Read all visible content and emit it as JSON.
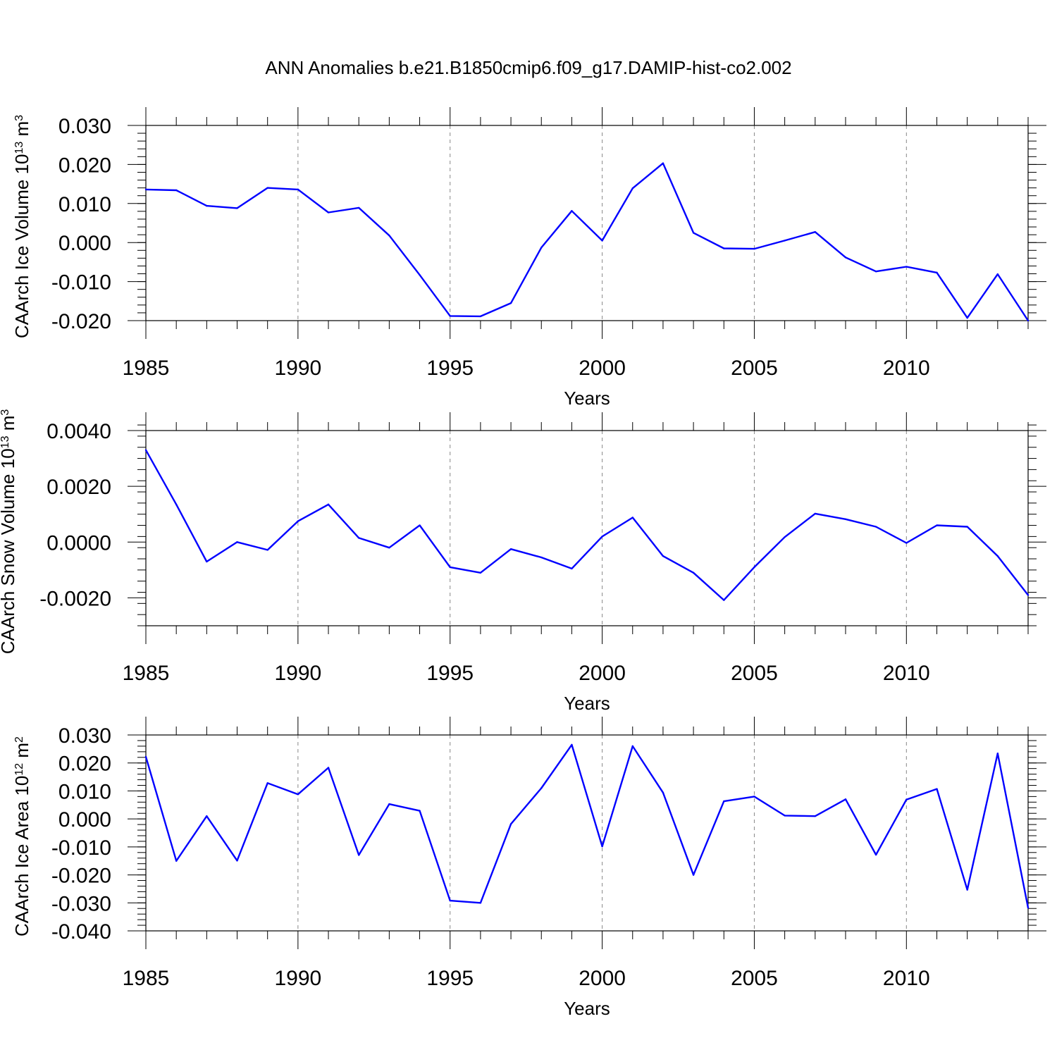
{
  "title": "ANN Anomalies b.e21.B1850cmip6.f09_g17.DAMIP-hist-co2.002",
  "colors": {
    "series": "#0000ff",
    "frame": "#000000",
    "grid": "#888888"
  },
  "chart_data": [
    {
      "type": "line",
      "name": "ice-volume",
      "ylabel_main": "CAArch Ice Volume 10",
      "ylabel_exp": "13",
      "ylabel_unit": " m",
      "ylabel_unit_exp": "3",
      "xlabel": "Years",
      "xlim": [
        1985,
        2014
      ],
      "ylim": [
        -0.02,
        0.03
      ],
      "xticks": [
        1985,
        1990,
        1995,
        2000,
        2005,
        2010
      ],
      "xtick_labels": [
        "1985",
        "1990",
        "1995",
        "2000",
        "2005",
        "2010"
      ],
      "yticks": [
        -0.02,
        -0.01,
        0.0,
        0.01,
        0.02,
        0.03
      ],
      "ytick_labels": [
        "-0.020",
        "-0.010",
        "0.000",
        "0.010",
        "0.020",
        "0.030"
      ],
      "y_minor_step": 0.002,
      "grid_x": [
        1990,
        1995,
        2000,
        2005,
        2010
      ],
      "x": [
        1985,
        1986,
        1987,
        1988,
        1989,
        1990,
        1991,
        1992,
        1993,
        1994,
        1995,
        1996,
        1997,
        1998,
        1999,
        2000,
        2001,
        2002,
        2003,
        2004,
        2005,
        2006,
        2007,
        2008,
        2009,
        2010,
        2011,
        2012,
        2013,
        2014
      ],
      "values": [
        0.0136,
        0.0134,
        0.0094,
        0.0088,
        0.014,
        0.0136,
        0.0077,
        0.0089,
        0.0018,
        -0.0083,
        -0.0188,
        -0.0189,
        -0.0155,
        -0.0013,
        0.0081,
        0.0005,
        0.0139,
        0.0203,
        0.0025,
        -0.0015,
        -0.0016,
        0.0005,
        0.0027,
        -0.0038,
        -0.0074,
        -0.0062,
        -0.0077,
        -0.0193,
        -0.0081,
        -0.02
      ]
    },
    {
      "type": "line",
      "name": "snow-volume",
      "ylabel_main": "CAArch Snow Volume 10",
      "ylabel_exp": "13",
      "ylabel_unit": " m",
      "ylabel_unit_exp": "3",
      "xlabel": "Years",
      "xlim": [
        1985,
        2014
      ],
      "ylim": [
        -0.003,
        0.004
      ],
      "xticks": [
        1985,
        1990,
        1995,
        2000,
        2005,
        2010
      ],
      "xtick_labels": [
        "1985",
        "1990",
        "1995",
        "2000",
        "2005",
        "2010"
      ],
      "yticks": [
        -0.002,
        0.0,
        0.002,
        0.004
      ],
      "ytick_labels": [
        "-0.0020",
        "0.0000",
        "0.0020",
        "0.0040"
      ],
      "y_minor_step": 0.0004,
      "grid_x": [
        1990,
        1995,
        2000,
        2005,
        2010
      ],
      "x": [
        1985,
        1986,
        1987,
        1988,
        1989,
        1990,
        1991,
        1992,
        1993,
        1994,
        1995,
        1996,
        1997,
        1998,
        1999,
        2000,
        2001,
        2002,
        2003,
        2004,
        2005,
        2006,
        2007,
        2008,
        2009,
        2010,
        2011,
        2012,
        2013,
        2014
      ],
      "values": [
        0.0033,
        0.00135,
        -0.0007,
        0.0,
        -0.00028,
        0.00075,
        0.00135,
        0.00015,
        -0.0002,
        0.0006,
        -0.0009,
        -0.0011,
        -0.00025,
        -0.00055,
        -0.00095,
        0.0002,
        0.00088,
        -0.0005,
        -0.0011,
        -0.00208,
        -0.0009,
        0.00018,
        0.00102,
        0.00082,
        0.00055,
        -3e-05,
        0.0006,
        0.00055,
        -0.0005,
        -0.0019
      ]
    },
    {
      "type": "line",
      "name": "ice-area",
      "ylabel_main": "CAArch Ice Area 10",
      "ylabel_exp": "12",
      "ylabel_unit": " m",
      "ylabel_unit_exp": "2",
      "xlabel": "Years",
      "xlim": [
        1985,
        2014
      ],
      "ylim": [
        -0.04,
        0.03
      ],
      "xticks": [
        1985,
        1990,
        1995,
        2000,
        2005,
        2010
      ],
      "xtick_labels": [
        "1985",
        "1990",
        "1995",
        "2000",
        "2005",
        "2010"
      ],
      "yticks": [
        -0.04,
        -0.03,
        -0.02,
        -0.01,
        0.0,
        0.01,
        0.02,
        0.03
      ],
      "ytick_labels": [
        "-0.040",
        "-0.030",
        "-0.020",
        "-0.010",
        "0.000",
        "0.010",
        "0.020",
        "0.030"
      ],
      "y_minor_step": 0.002,
      "grid_x": [
        1990,
        1995,
        2000,
        2005,
        2010
      ],
      "x": [
        1985,
        1986,
        1987,
        1988,
        1989,
        1990,
        1991,
        1992,
        1993,
        1994,
        1995,
        1996,
        1997,
        1998,
        1999,
        2000,
        2001,
        2002,
        2003,
        2004,
        2005,
        2006,
        2007,
        2008,
        2009,
        2010,
        2011,
        2012,
        2013,
        2014
      ],
      "values": [
        0.0222,
        -0.015,
        0.001,
        -0.0149,
        0.0128,
        0.0088,
        0.0183,
        -0.0129,
        0.0053,
        0.0029,
        -0.0292,
        -0.03,
        -0.0018,
        0.011,
        0.0265,
        -0.0098,
        0.026,
        0.0094,
        -0.02,
        0.0063,
        0.008,
        0.0012,
        0.001,
        0.007,
        -0.0128,
        0.0069,
        0.0107,
        -0.0253,
        0.0234,
        -0.0318
      ]
    }
  ]
}
